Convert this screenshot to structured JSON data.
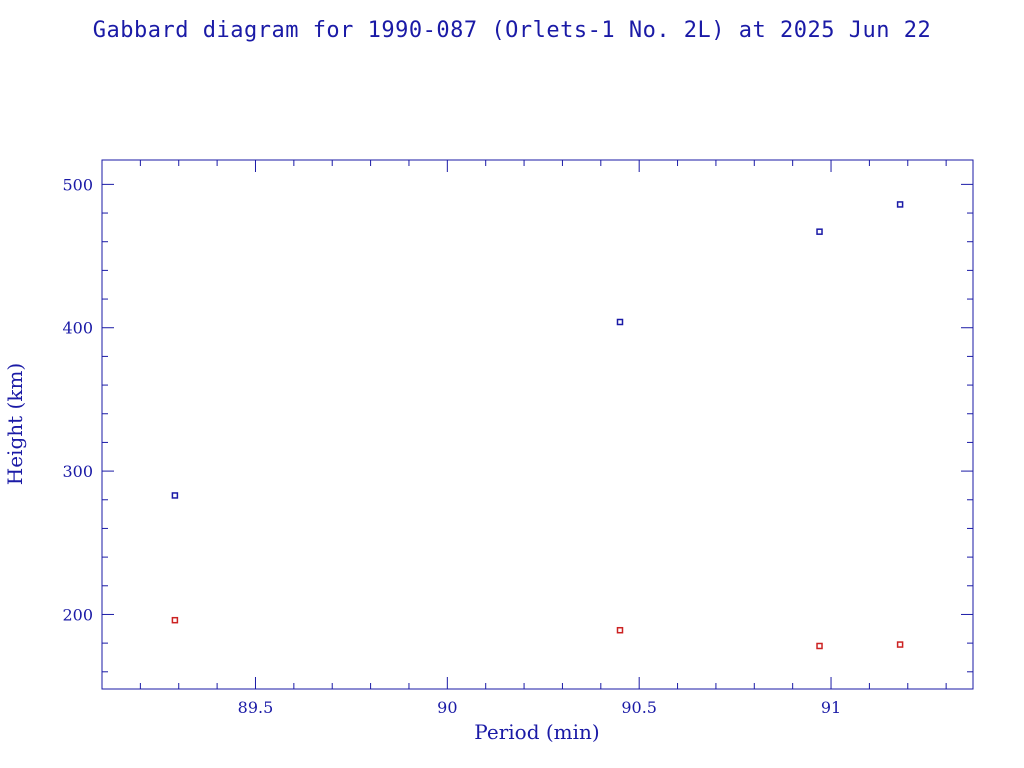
{
  "chart_data": {
    "type": "scatter",
    "title": "Gabbard diagram for 1990-087 (Orlets-1 No. 2L) at 2025 Jun 22",
    "xlabel": "Period (min)",
    "ylabel": "Height (km)",
    "xlim": [
      89.1,
      91.37
    ],
    "ylim": [
      148,
      517
    ],
    "x_ticks": [
      89.5,
      90,
      90.5,
      91
    ],
    "x_tick_labels": [
      "89.5",
      "90",
      "90.5",
      "91"
    ],
    "x_minor_step": 0.1,
    "y_ticks": [
      200,
      300,
      400,
      500
    ],
    "y_tick_labels": [
      "200",
      "300",
      "400",
      "500"
    ],
    "y_minor_step": 20,
    "grid": false,
    "colors": {
      "axes": "#1a1aa6",
      "apogee": "#1a1aa6",
      "perigee": "#cc2222"
    },
    "series": [
      {
        "values": [
          {
            "x": 89.29,
            "y": 283
          },
          {
            "x": 90.45,
            "y": 404
          },
          {
            "x": 90.97,
            "y": 467
          },
          {
            "x": 91.18,
            "y": 486
          }
        ],
        "marker": "square",
        "color": "#1a1aa6"
      },
      {
        "values": [
          {
            "x": 89.29,
            "y": 196
          },
          {
            "x": 90.45,
            "y": 189
          },
          {
            "x": 90.97,
            "y": 178
          },
          {
            "x": 91.18,
            "y": 179
          }
        ],
        "marker": "square",
        "color": "#cc2222"
      }
    ]
  }
}
